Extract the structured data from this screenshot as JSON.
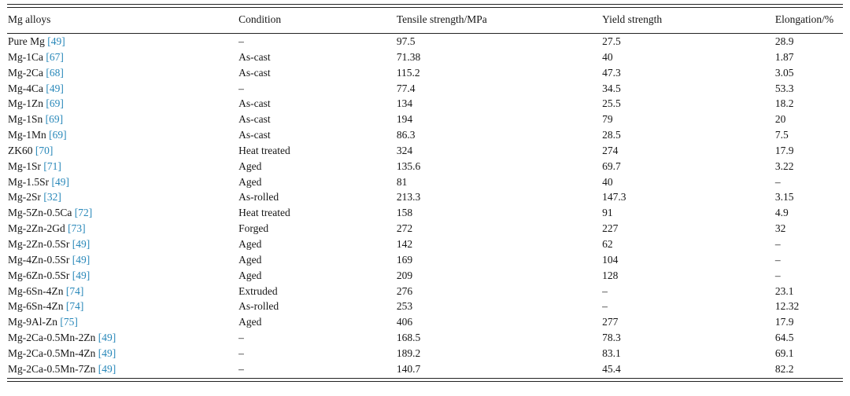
{
  "colors": {
    "citation": "#2787b9",
    "text": "#161616",
    "rule": "#222222"
  },
  "table": {
    "columns": [
      "Mg alloys",
      "Condition",
      "Tensile strength/MPa",
      "Yield strength",
      "Elongation/%"
    ],
    "rows": [
      {
        "alloy": "Pure Mg",
        "ref": "[49]",
        "condition": "–",
        "tensile": "97.5",
        "yield": "27.5",
        "elongation": "28.9"
      },
      {
        "alloy": "Mg-1Ca",
        "ref": "[67]",
        "condition": "As-cast",
        "tensile": "71.38",
        "yield": "40",
        "elongation": "1.87"
      },
      {
        "alloy": "Mg-2Ca",
        "ref": "[68]",
        "condition": "As-cast",
        "tensile": "115.2",
        "yield": "47.3",
        "elongation": "3.05"
      },
      {
        "alloy": "Mg-4Ca",
        "ref": "[49]",
        "condition": "–",
        "tensile": "77.4",
        "yield": "34.5",
        "elongation": "53.3"
      },
      {
        "alloy": "Mg-1Zn",
        "ref": "[69]",
        "condition": "As-cast",
        "tensile": "134",
        "yield": "25.5",
        "elongation": "18.2"
      },
      {
        "alloy": "Mg-1Sn",
        "ref": "[69]",
        "condition": "As-cast",
        "tensile": "194",
        "yield": "79",
        "elongation": "20"
      },
      {
        "alloy": "Mg-1Mn",
        "ref": "[69]",
        "condition": "As-cast",
        "tensile": "86.3",
        "yield": "28.5",
        "elongation": "7.5"
      },
      {
        "alloy": "ZK60",
        "ref": "[70]",
        "condition": "Heat treated",
        "tensile": "324",
        "yield": "274",
        "elongation": "17.9"
      },
      {
        "alloy": "Mg-1Sr",
        "ref": "[71]",
        "condition": "Aged",
        "tensile": "135.6",
        "yield": "69.7",
        "elongation": "3.22"
      },
      {
        "alloy": "Mg-1.5Sr",
        "ref": "[49]",
        "condition": "Aged",
        "tensile": "81",
        "yield": "40",
        "elongation": "–"
      },
      {
        "alloy": "Mg-2Sr",
        "ref": "[32]",
        "condition": "As-rolled",
        "tensile": "213.3",
        "yield": "147.3",
        "elongation": "3.15"
      },
      {
        "alloy": "Mg-5Zn-0.5Ca",
        "ref": "[72]",
        "condition": "Heat treated",
        "tensile": "158",
        "yield": "91",
        "elongation": "4.9"
      },
      {
        "alloy": "Mg-2Zn-2Gd",
        "ref": "[73]",
        "condition": "Forged",
        "tensile": "272",
        "yield": "227",
        "elongation": "32"
      },
      {
        "alloy": "Mg-2Zn-0.5Sr",
        "ref": "[49]",
        "condition": "Aged",
        "tensile": "142",
        "yield": "62",
        "elongation": "–"
      },
      {
        "alloy": "Mg-4Zn-0.5Sr",
        "ref": "[49]",
        "condition": "Aged",
        "tensile": "169",
        "yield": "104",
        "elongation": "–"
      },
      {
        "alloy": "Mg-6Zn-0.5Sr",
        "ref": "[49]",
        "condition": "Aged",
        "tensile": "209",
        "yield": "128",
        "elongation": "–"
      },
      {
        "alloy": "Mg-6Sn-4Zn",
        "ref": "[74]",
        "condition": "Extruded",
        "tensile": "276",
        "yield": "–",
        "elongation": "23.1"
      },
      {
        "alloy": "Mg-6Sn-4Zn",
        "ref": "[74]",
        "condition": "As-rolled",
        "tensile": "253",
        "yield": "–",
        "elongation": "12.32"
      },
      {
        "alloy": "Mg-9Al-Zn",
        "ref": "[75]",
        "condition": "Aged",
        "tensile": "406",
        "yield": "277",
        "elongation": "17.9"
      },
      {
        "alloy": "Mg-2Ca-0.5Mn-2Zn",
        "ref": "[49]",
        "condition": "–",
        "tensile": "168.5",
        "yield": "78.3",
        "elongation": "64.5"
      },
      {
        "alloy": "Mg-2Ca-0.5Mn-4Zn",
        "ref": "[49]",
        "condition": "–",
        "tensile": "189.2",
        "yield": "83.1",
        "elongation": "69.1"
      },
      {
        "alloy": "Mg-2Ca-0.5Mn-7Zn",
        "ref": "[49]",
        "condition": "–",
        "tensile": "140.7",
        "yield": "45.4",
        "elongation": "82.2"
      }
    ]
  }
}
